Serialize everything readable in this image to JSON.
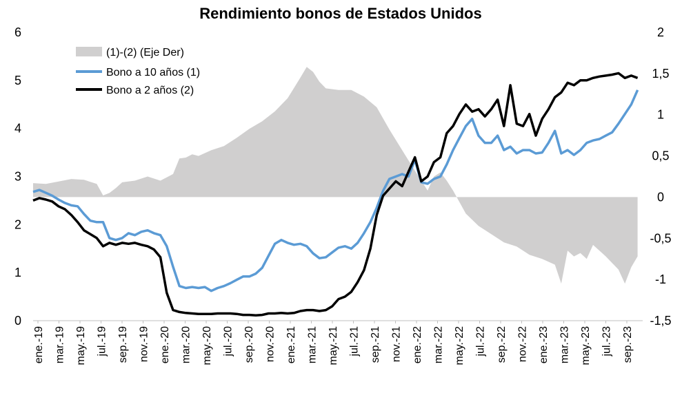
{
  "chart_data": {
    "type": "line",
    "title": "Rendimiento bonos de Estados Unidos",
    "x_labels": [
      "ene.-19",
      "mar.-19",
      "may.-19",
      "jul.-19",
      "sep.-19",
      "nov.-19",
      "ene.-20",
      "mar.-20",
      "may.-20",
      "jul.-20",
      "sep.-20",
      "nov.-20",
      "ene.-21",
      "mar.-21",
      "may.-21",
      "jul.-21",
      "sep.-21",
      "nov.-21",
      "ene.-22",
      "mar.-22",
      "may.-22",
      "jul.-22",
      "sep.-22",
      "nov.-22",
      "ene.-23",
      "mar.-23",
      "may.-23",
      "jul.-23",
      "sep.-23"
    ],
    "y_left": {
      "min": 0,
      "max": 6,
      "ticks": [
        0,
        1,
        2,
        3,
        4,
        5,
        6
      ]
    },
    "y_right": {
      "min": -1.5,
      "max": 2,
      "ticks": [
        "-1,5",
        "-1",
        "-0,5",
        "0",
        "0,5",
        "1",
        "1,5",
        "2"
      ]
    },
    "legend_position": "top-left",
    "grid": false,
    "series": [
      {
        "name": "(1)-(2) (Eje Der)",
        "type": "area",
        "axis": "right",
        "color": "#d0cfcf",
        "x": [
          2019.0,
          2019.1,
          2019.2,
          2019.3,
          2019.4,
          2019.5,
          2019.55,
          2019.6,
          2019.65,
          2019.7,
          2019.8,
          2019.9,
          2020.0,
          2020.1,
          2020.15,
          2020.2,
          2020.25,
          2020.3,
          2020.4,
          2020.5,
          2020.6,
          2020.7,
          2020.8,
          2020.9,
          2021.0,
          2021.1,
          2021.15,
          2021.2,
          2021.25,
          2021.3,
          2021.4,
          2021.5,
          2021.6,
          2021.7,
          2021.8,
          2021.9,
          2022.0,
          2022.1,
          2022.15,
          2022.2,
          2022.25,
          2022.3,
          2022.4,
          2022.5,
          2022.6,
          2022.7,
          2022.8,
          2022.9,
          2023.0,
          2023.1,
          2023.15,
          2023.2,
          2023.25,
          2023.3,
          2023.35,
          2023.4,
          2023.45,
          2023.5,
          2023.55,
          2023.6,
          2023.65,
          2023.7,
          2023.75
        ],
        "values": [
          0.17,
          0.16,
          0.19,
          0.22,
          0.21,
          0.16,
          0.02,
          0.05,
          0.11,
          0.18,
          0.2,
          0.25,
          0.2,
          0.28,
          0.47,
          0.48,
          0.52,
          0.5,
          0.57,
          0.62,
          0.72,
          0.83,
          0.92,
          1.04,
          1.2,
          1.45,
          1.58,
          1.52,
          1.4,
          1.32,
          1.3,
          1.3,
          1.22,
          1.09,
          0.82,
          0.57,
          0.32,
          0.08,
          0.25,
          0.3,
          0.2,
          0.08,
          -0.2,
          -0.35,
          -0.45,
          -0.55,
          -0.6,
          -0.7,
          -0.75,
          -0.82,
          -1.05,
          -0.65,
          -0.72,
          -0.68,
          -0.75,
          -0.58,
          -0.65,
          -0.72,
          -0.8,
          -0.88,
          -1.05,
          -0.85,
          -0.72
        ]
      },
      {
        "name": "Bono a 10 años (1)",
        "type": "line",
        "axis": "left",
        "color": "#5b9bd5",
        "x": [
          2019.0,
          2019.05,
          2019.1,
          2019.15,
          2019.2,
          2019.25,
          2019.3,
          2019.35,
          2019.4,
          2019.45,
          2019.5,
          2019.55,
          2019.6,
          2019.65,
          2019.7,
          2019.75,
          2019.8,
          2019.85,
          2019.9,
          2019.95,
          2020.0,
          2020.05,
          2020.1,
          2020.15,
          2020.2,
          2020.25,
          2020.3,
          2020.35,
          2020.4,
          2020.45,
          2020.5,
          2020.55,
          2020.6,
          2020.65,
          2020.7,
          2020.75,
          2020.8,
          2020.85,
          2020.9,
          2020.95,
          2021.0,
          2021.05,
          2021.1,
          2021.15,
          2021.2,
          2021.25,
          2021.3,
          2021.35,
          2021.4,
          2021.45,
          2021.5,
          2021.55,
          2021.6,
          2021.65,
          2021.7,
          2021.75,
          2021.8,
          2021.85,
          2021.9,
          2021.95,
          2022.0,
          2022.05,
          2022.1,
          2022.15,
          2022.2,
          2022.25,
          2022.3,
          2022.35,
          2022.4,
          2022.45,
          2022.5,
          2022.55,
          2022.6,
          2022.65,
          2022.7,
          2022.75,
          2022.8,
          2022.85,
          2022.9,
          2022.95,
          2023.0,
          2023.05,
          2023.1,
          2023.15,
          2023.2,
          2023.25,
          2023.3,
          2023.35,
          2023.4,
          2023.45,
          2023.5,
          2023.55,
          2023.6,
          2023.65,
          2023.7,
          2023.75
        ],
        "values": [
          2.68,
          2.72,
          2.66,
          2.6,
          2.52,
          2.45,
          2.4,
          2.38,
          2.22,
          2.08,
          2.05,
          2.05,
          1.72,
          1.68,
          1.72,
          1.82,
          1.78,
          1.85,
          1.88,
          1.82,
          1.78,
          1.55,
          1.12,
          0.72,
          0.68,
          0.7,
          0.68,
          0.7,
          0.62,
          0.68,
          0.72,
          0.78,
          0.85,
          0.92,
          0.92,
          0.98,
          1.1,
          1.35,
          1.6,
          1.68,
          1.62,
          1.58,
          1.6,
          1.55,
          1.4,
          1.3,
          1.32,
          1.42,
          1.52,
          1.55,
          1.5,
          1.62,
          1.82,
          2.05,
          2.35,
          2.7,
          2.95,
          3.0,
          3.05,
          3.0,
          3.35,
          2.88,
          2.85,
          2.95,
          3.0,
          3.25,
          3.55,
          3.8,
          4.05,
          4.2,
          3.85,
          3.7,
          3.7,
          3.85,
          3.55,
          3.62,
          3.48,
          3.55,
          3.55,
          3.48,
          3.5,
          3.7,
          3.95,
          3.48,
          3.55,
          3.45,
          3.55,
          3.7,
          3.75,
          3.78,
          3.85,
          3.92,
          4.1,
          4.3,
          4.5,
          4.8
        ]
      },
      {
        "name": "Bono a 2 años (2)",
        "type": "line",
        "axis": "left",
        "color": "#000000",
        "x": [
          2019.0,
          2019.05,
          2019.1,
          2019.15,
          2019.2,
          2019.25,
          2019.3,
          2019.35,
          2019.4,
          2019.45,
          2019.5,
          2019.55,
          2019.6,
          2019.65,
          2019.7,
          2019.75,
          2019.8,
          2019.85,
          2019.9,
          2019.95,
          2020.0,
          2020.05,
          2020.1,
          2020.15,
          2020.2,
          2020.25,
          2020.3,
          2020.35,
          2020.4,
          2020.45,
          2020.5,
          2020.55,
          2020.6,
          2020.65,
          2020.7,
          2020.75,
          2020.8,
          2020.85,
          2020.9,
          2020.95,
          2021.0,
          2021.05,
          2021.1,
          2021.15,
          2021.2,
          2021.25,
          2021.3,
          2021.35,
          2021.4,
          2021.45,
          2021.5,
          2021.55,
          2021.6,
          2021.65,
          2021.7,
          2021.75,
          2021.8,
          2021.85,
          2021.9,
          2021.95,
          2022.0,
          2022.05,
          2022.1,
          2022.15,
          2022.2,
          2022.25,
          2022.3,
          2022.35,
          2022.4,
          2022.45,
          2022.5,
          2022.55,
          2022.6,
          2022.65,
          2022.7,
          2022.75,
          2022.8,
          2022.85,
          2022.9,
          2022.95,
          2023.0,
          2023.05,
          2023.1,
          2023.15,
          2023.2,
          2023.25,
          2023.3,
          2023.35,
          2023.4,
          2023.45,
          2023.5,
          2023.55,
          2023.6,
          2023.65,
          2023.7,
          2023.75
        ],
        "values": [
          2.5,
          2.55,
          2.52,
          2.48,
          2.38,
          2.32,
          2.2,
          2.05,
          1.88,
          1.8,
          1.72,
          1.55,
          1.62,
          1.58,
          1.62,
          1.6,
          1.62,
          1.58,
          1.55,
          1.48,
          1.32,
          0.58,
          0.22,
          0.18,
          0.16,
          0.15,
          0.14,
          0.14,
          0.14,
          0.15,
          0.15,
          0.15,
          0.14,
          0.12,
          0.12,
          0.11,
          0.12,
          0.15,
          0.15,
          0.16,
          0.15,
          0.16,
          0.2,
          0.22,
          0.22,
          0.2,
          0.22,
          0.3,
          0.45,
          0.5,
          0.6,
          0.8,
          1.05,
          1.5,
          2.2,
          2.6,
          2.75,
          2.9,
          2.8,
          3.1,
          3.4,
          2.9,
          3.0,
          3.3,
          3.4,
          3.9,
          4.05,
          4.3,
          4.5,
          4.35,
          4.4,
          4.25,
          4.4,
          4.6,
          4.05,
          4.9,
          4.1,
          4.05,
          4.3,
          3.85,
          4.2,
          4.4,
          4.65,
          4.75,
          4.95,
          4.9,
          5.0,
          5.0,
          5.05,
          5.08,
          5.1,
          5.12,
          5.15,
          5.05,
          5.1,
          5.05
        ]
      }
    ]
  }
}
